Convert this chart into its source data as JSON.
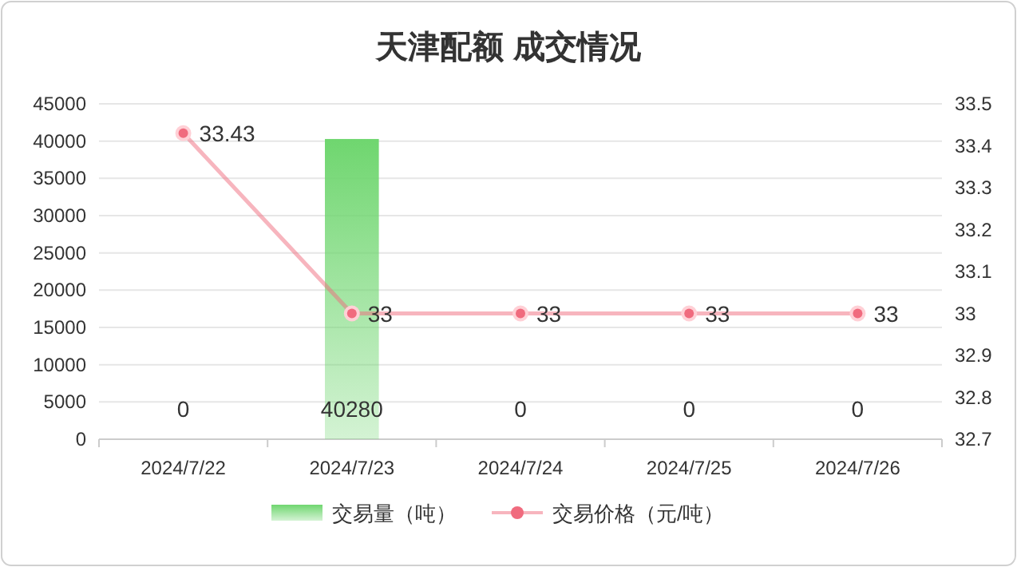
{
  "chart_data": {
    "type": "bar",
    "title": "天津配额 成交情况",
    "categories": [
      "2024/7/22",
      "2024/7/23",
      "2024/7/24",
      "2024/7/25",
      "2024/7/26"
    ],
    "series": [
      {
        "name": "交易量（吨）",
        "color": "#6fd66f",
        "values": [
          0,
          40280,
          0,
          0,
          0
        ]
      },
      {
        "name": "交易价格（元/吨）",
        "type": "line",
        "axis": "y2",
        "color": "#f06b7e",
        "values": [
          33.43,
          33,
          33,
          33,
          33
        ]
      }
    ],
    "ylim": [
      0,
      45000
    ],
    "yticks": [
      0,
      5000,
      10000,
      15000,
      20000,
      25000,
      30000,
      35000,
      40000,
      45000
    ],
    "y2lim": [
      32.7,
      33.5
    ],
    "y2ticks": [
      32.7,
      32.8,
      32.9,
      33,
      33.1,
      33.2,
      33.3,
      33.4,
      33.5
    ],
    "grid": "y",
    "legend": "bottom",
    "data_labels": true,
    "marker": "circle",
    "line_style": "solid"
  }
}
